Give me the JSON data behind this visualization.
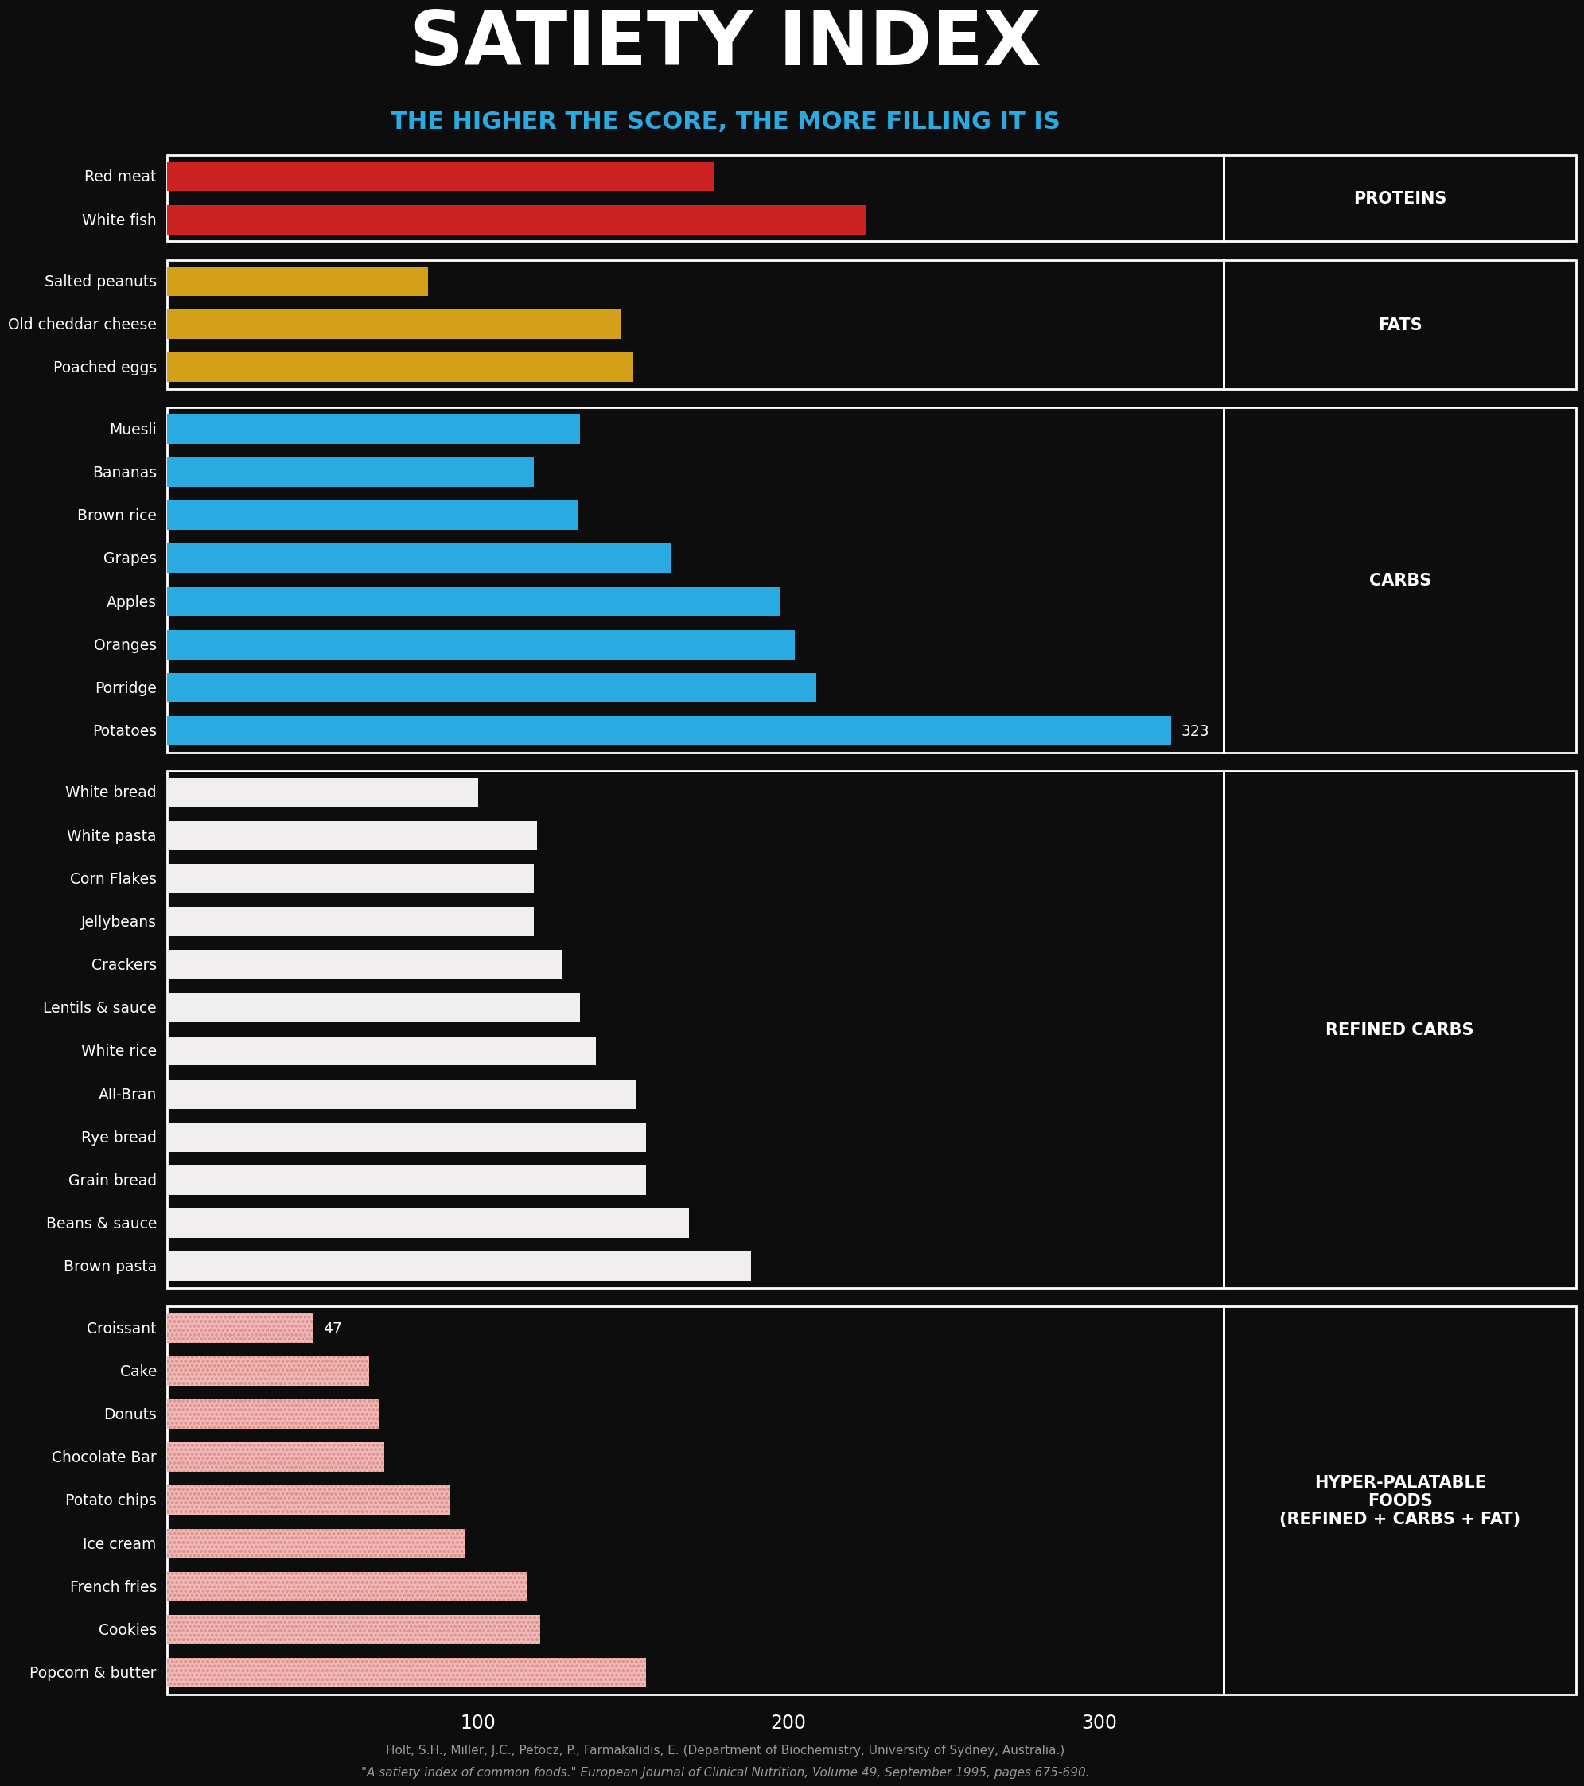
{
  "title": "SATIETY INDEX",
  "subtitle": "THE HIGHER THE SCORE, THE MORE FILLING IT IS",
  "background_color": "#0d0d0d",
  "title_color": "#ffffff",
  "subtitle_color": "#29abe2",
  "sections": [
    {
      "label": "PROTEINS",
      "items": [
        {
          "name": "Red meat",
          "value": 176
        },
        {
          "name": "White fish",
          "value": 225
        }
      ],
      "bar_color": "#cc2222",
      "hatched": false
    },
    {
      "label": "FATS",
      "items": [
        {
          "name": "Salted peanuts",
          "value": 84
        },
        {
          "name": "Old cheddar cheese",
          "value": 146
        },
        {
          "name": "Poached eggs",
          "value": 150
        }
      ],
      "bar_color": "#d4a017",
      "hatched": false
    },
    {
      "label": "CARBS",
      "items": [
        {
          "name": "Muesli",
          "value": 133
        },
        {
          "name": "Bananas",
          "value": 118
        },
        {
          "name": "Brown rice",
          "value": 132
        },
        {
          "name": "Grapes",
          "value": 162
        },
        {
          "name": "Apples",
          "value": 197
        },
        {
          "name": "Oranges",
          "value": 202
        },
        {
          "name": "Porridge",
          "value": 209
        },
        {
          "name": "Potatoes",
          "value": 323
        }
      ],
      "bar_color": "#29abe2",
      "hatched": false
    },
    {
      "label": "REFINED CARBS",
      "items": [
        {
          "name": "White bread",
          "value": 100
        },
        {
          "name": "White pasta",
          "value": 119
        },
        {
          "name": "Corn Flakes",
          "value": 118
        },
        {
          "name": "Jellybeans",
          "value": 118
        },
        {
          "name": "Crackers",
          "value": 127
        },
        {
          "name": "Lentils & sauce",
          "value": 133
        },
        {
          "name": "White rice",
          "value": 138
        },
        {
          "name": "All-Bran",
          "value": 151
        },
        {
          "name": "Rye bread",
          "value": 154
        },
        {
          "name": "Grain bread",
          "value": 154
        },
        {
          "name": "Beans & sauce",
          "value": 168
        },
        {
          "name": "Brown pasta",
          "value": 188
        }
      ],
      "bar_color": "#f0eeee",
      "hatched": false
    },
    {
      "label": "HYPER-PALATABLE\nFOODS\n(REFINED + CARBS + FAT)",
      "items": [
        {
          "name": "Croissant",
          "value": 47,
          "show_value": true
        },
        {
          "name": "Cake",
          "value": 65
        },
        {
          "name": "Donuts",
          "value": 68
        },
        {
          "name": "Chocolate Bar",
          "value": 70
        },
        {
          "name": "Potato chips",
          "value": 91
        },
        {
          "name": "Ice cream",
          "value": 96
        },
        {
          "name": "French fries",
          "value": 116
        },
        {
          "name": "Cookies",
          "value": 120
        },
        {
          "name": "Popcorn & butter",
          "value": 154
        }
      ],
      "bar_color": "#f2b8b8",
      "hatched": true
    }
  ],
  "special_labels": [
    {
      "name": "Potatoes",
      "label": "323"
    },
    {
      "name": "Croissant",
      "label": "47"
    }
  ],
  "x_max": 340,
  "x_ticks": [
    100,
    200,
    300
  ],
  "citation_line1": "Holt, S.H., Miller, J.C., Petocz, P., Farmakalidis, E. (Department of Biochemistry, University of Sydney, Australia.)",
  "citation_line2": "\"A satiety index of common foods.\" European Journal of Clinical Nutrition, Volume 49, September 1995, pages 675-690."
}
